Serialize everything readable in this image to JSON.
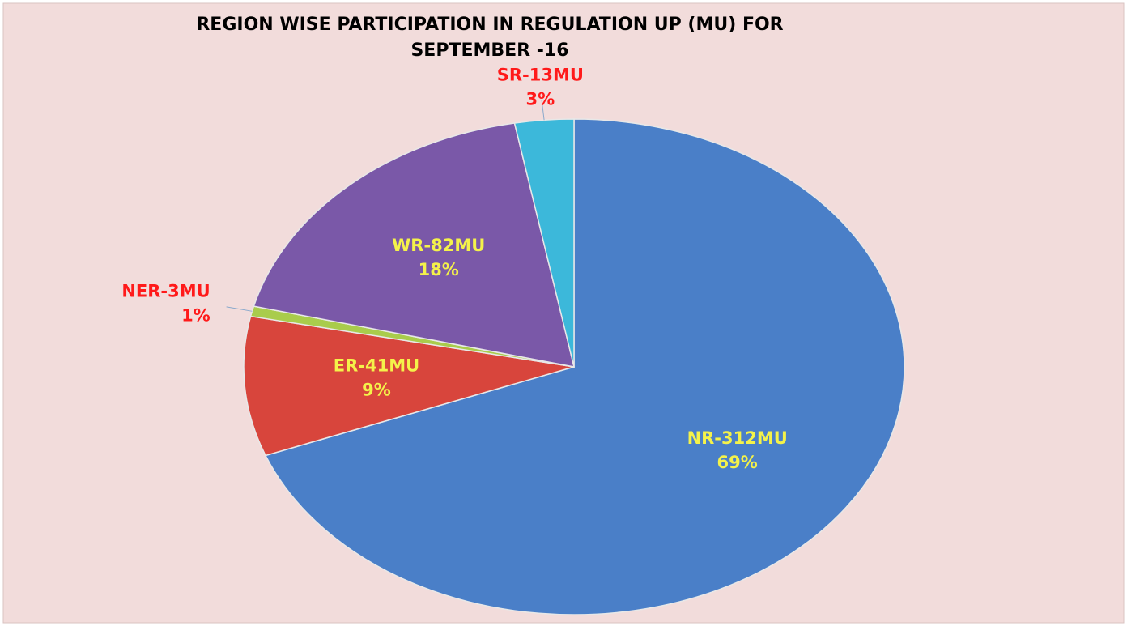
{
  "chart_data": {
    "type": "pie",
    "title": [
      "REGION WISE PARTICIPATION IN REGULATION UP (MU) FOR",
      "SEPTEMBER -16"
    ],
    "values": [
      312,
      41,
      3,
      82,
      13
    ],
    "value_labels": [
      "NR-312MU",
      "ER-41MU",
      "NER-3MU",
      "WR-82MU",
      "SR-13MU"
    ],
    "percents": [
      69,
      9,
      1,
      18,
      3
    ],
    "percent_labels": [
      "69%",
      "9%",
      "1%",
      "18%",
      "3%"
    ],
    "colors": [
      "#4a7fc8",
      "#d8453c",
      "#a9cc4c",
      "#7a58a8",
      "#3cb8da"
    ]
  }
}
